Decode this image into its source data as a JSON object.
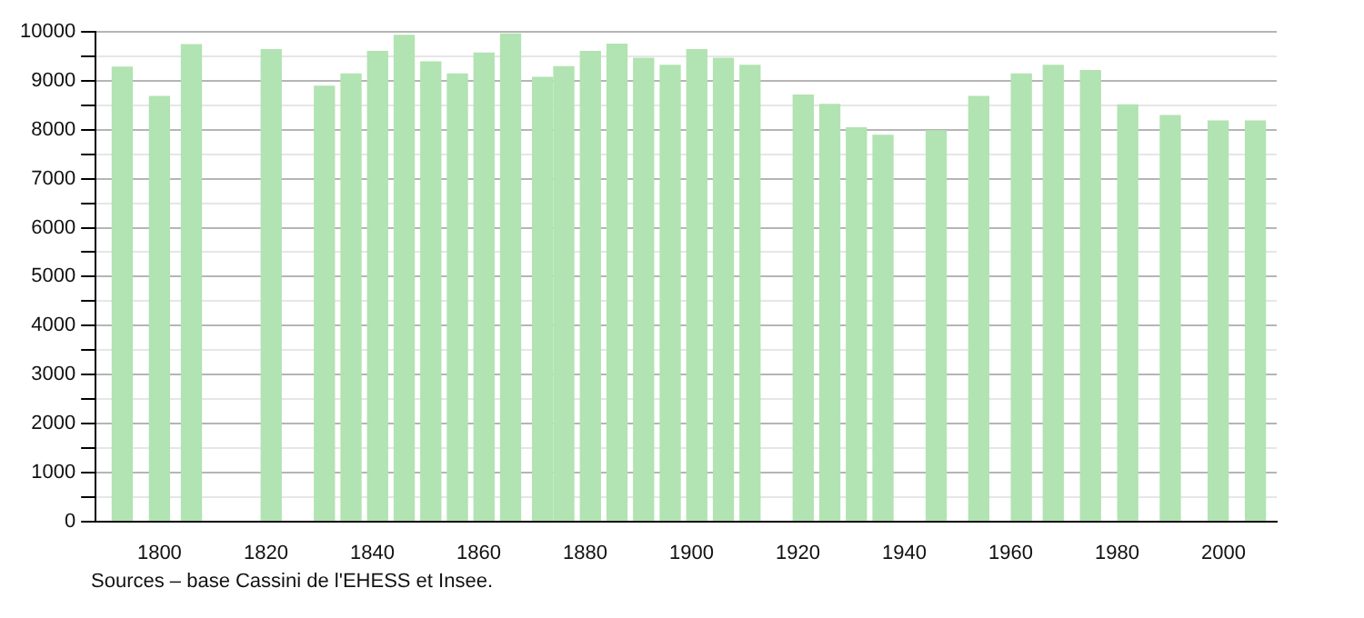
{
  "chart_data": {
    "type": "bar",
    "x": [
      1793,
      1800,
      1806,
      1821,
      1831,
      1836,
      1841,
      1846,
      1851,
      1856,
      1861,
      1866,
      1872,
      1876,
      1881,
      1886,
      1891,
      1896,
      1901,
      1906,
      1911,
      1921,
      1926,
      1931,
      1936,
      1946,
      1954,
      1962,
      1968,
      1975,
      1982,
      1990,
      1999,
      2006
    ],
    "values": [
      9280,
      8680,
      9740,
      9640,
      8890,
      9140,
      9600,
      9930,
      9390,
      9140,
      9570,
      9960,
      9070,
      9290,
      9600,
      9750,
      9460,
      9320,
      9640,
      9460,
      9320,
      8710,
      8520,
      8040,
      7890,
      7980,
      8680,
      9140,
      9320,
      9210,
      8510,
      8290,
      8180,
      8180
    ],
    "color": "#b2e3b2",
    "xlim": [
      1788,
      2010
    ],
    "xticks": [
      1800,
      1820,
      1840,
      1860,
      1880,
      1900,
      1920,
      1940,
      1960,
      1980,
      2000
    ],
    "ylim": [
      0,
      10000
    ],
    "yticks": [
      0,
      {
        "value": 500,
        "label": null
      },
      1000,
      {
        "value": 1500,
        "label": null
      },
      2000,
      {
        "value": 2500,
        "label": null
      },
      3000,
      {
        "value": 3500,
        "label": null
      },
      4000,
      {
        "value": 4500,
        "label": null
      },
      5000,
      {
        "value": 5500,
        "label": null
      },
      6000,
      {
        "value": 6500,
        "label": null
      },
      7000,
      {
        "value": 7500,
        "label": null
      },
      8000,
      {
        "value": 8500,
        "label": null
      },
      9000,
      {
        "value": 9500,
        "label": null
      },
      10000
    ],
    "grid": "y",
    "legend": false,
    "annotations": [
      "Sources – base Cassini de l'EHESS et Insee."
    ]
  }
}
